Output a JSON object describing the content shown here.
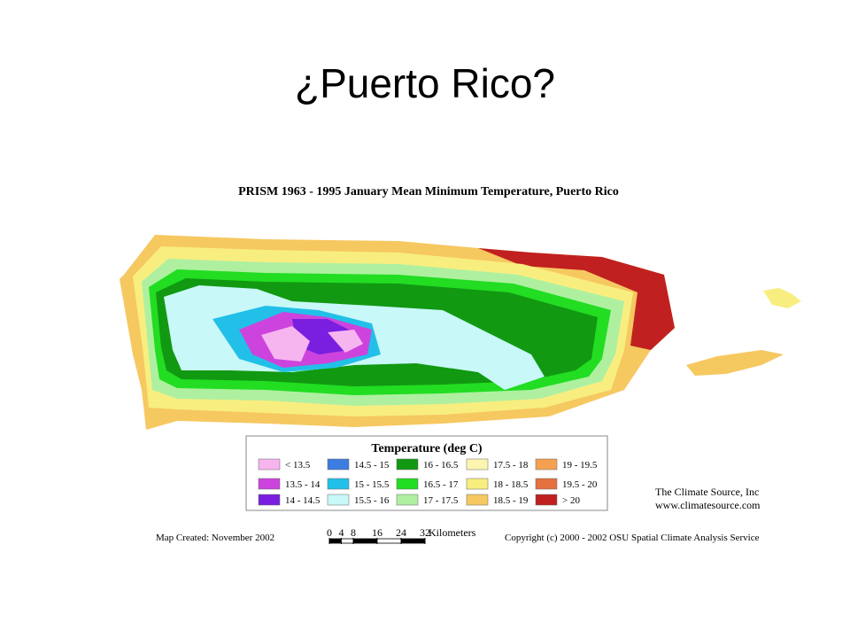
{
  "slide_title": "¿Puerto Rico?",
  "map": {
    "title": "PRISM 1963 - 1995 January Mean Minimum Temperature, Puerto Rico",
    "legend": {
      "title": "Temperature (deg C)",
      "items": [
        {
          "label": "< 13.5",
          "color": "#f7b5f0"
        },
        {
          "label": "13.5 - 14",
          "color": "#cc44dd"
        },
        {
          "label": "14 - 14.5",
          "color": "#7a1ee0"
        },
        {
          "label": "14.5 - 15",
          "color": "#3c7de0"
        },
        {
          "label": "15 - 15.5",
          "color": "#22c0e8"
        },
        {
          "label": "15.5 - 16",
          "color": "#c8f8f8"
        },
        {
          "label": "16 - 16.5",
          "color": "#119911"
        },
        {
          "label": "16.5 - 17",
          "color": "#22dd22"
        },
        {
          "label": "17 - 17.5",
          "color": "#aef0a0"
        },
        {
          "label": "17.5 - 18",
          "color": "#fbf5b0"
        },
        {
          "label": "18 - 18.5",
          "color": "#f8ee80"
        },
        {
          "label": "18.5 - 19",
          "color": "#f6c860"
        },
        {
          "label": "19 - 19.5",
          "color": "#f5a050"
        },
        {
          "label": "19.5 - 20",
          "color": "#e57040"
        },
        {
          "label": "> 20",
          "color": "#c02020"
        }
      ]
    },
    "credit": [
      "The Climate Source, Inc",
      "www.climatesource.com"
    ],
    "created": "Map Created: November 2002",
    "copyright": "Copyright (c) 2000 - 2002 OSU Spatial Climate Analysis Service",
    "scale": {
      "ticks": [
        0,
        4,
        8,
        16,
        24,
        32
      ],
      "unit": "Kilometers"
    }
  }
}
